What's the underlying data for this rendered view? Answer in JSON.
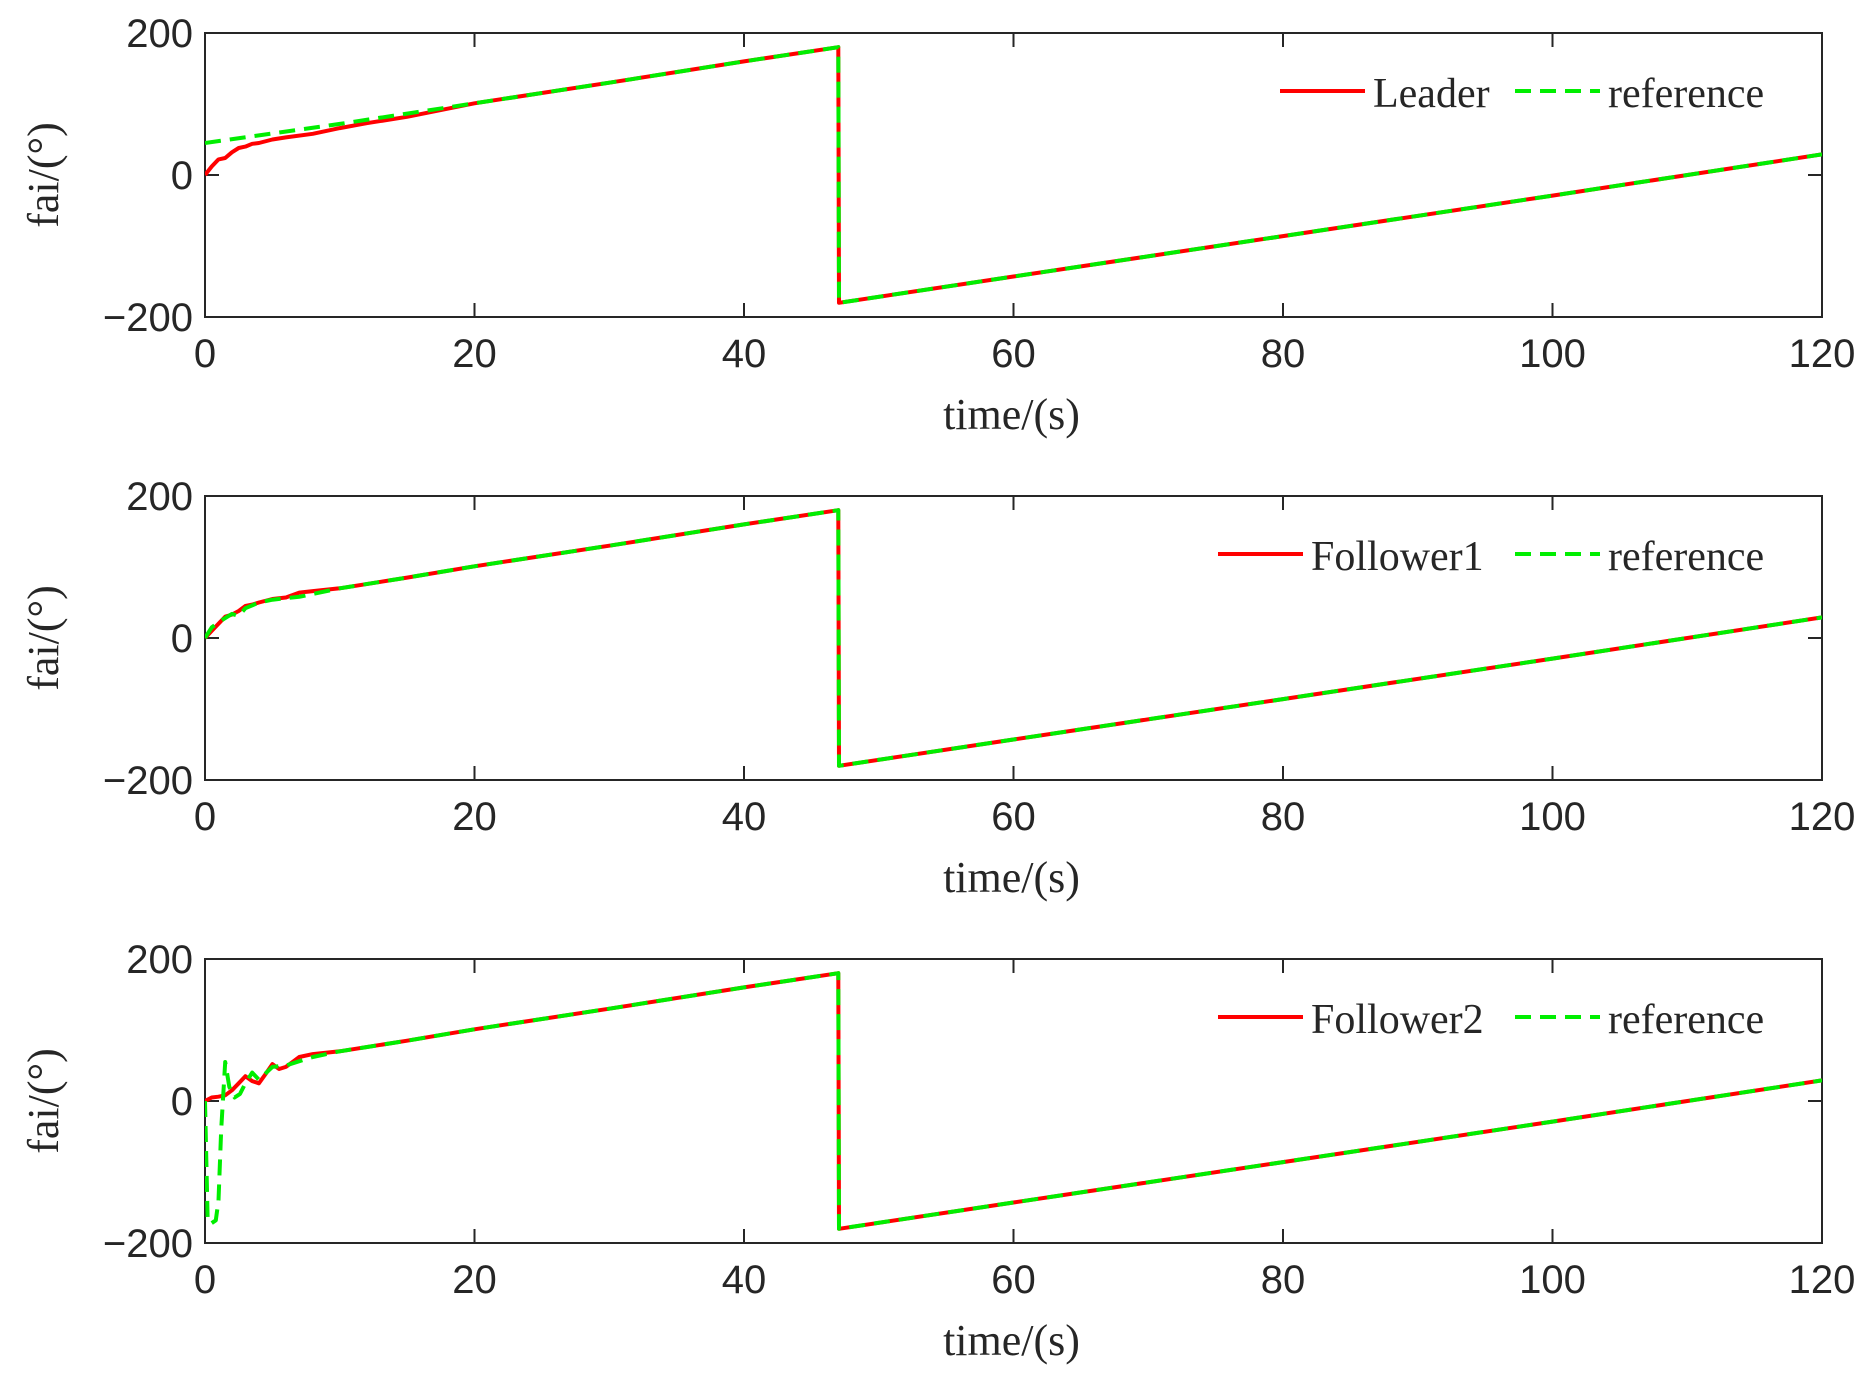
{
  "chart_data": [
    {
      "type": "line",
      "xlabel": "time/(s)",
      "ylabel": "fai/(°)",
      "xlim": [
        0,
        120
      ],
      "ylim": [
        -200,
        200
      ],
      "xticks": [
        "0",
        "20",
        "40",
        "60",
        "80",
        "100",
        "120"
      ],
      "yticks": [
        "200",
        "0",
        "−200"
      ],
      "legend_position": "top-right",
      "series": [
        {
          "name": "Leader",
          "color": "#ff0000",
          "style": "solid",
          "x": [
            0,
            0.5,
            1,
            1.5,
            2,
            2.5,
            3,
            3.5,
            4,
            5,
            6,
            8,
            10,
            12,
            15,
            20,
            30,
            40,
            47,
            47.05,
            60,
            80,
            100,
            120
          ],
          "y": [
            0,
            12,
            22,
            24,
            32,
            38,
            40,
            44,
            45,
            50,
            53,
            58,
            66,
            73,
            82,
            101,
            130,
            160,
            180,
            -180,
            -143,
            -86,
            -29,
            29
          ]
        },
        {
          "name": "reference",
          "color": "#00ee00",
          "style": "dashed",
          "x": [
            0,
            10,
            20,
            30,
            40,
            47,
            47.05,
            60,
            80,
            100,
            120
          ],
          "y": [
            45,
            72,
            101,
            130,
            160,
            180,
            -180,
            -143,
            -86,
            -29,
            29
          ]
        }
      ]
    },
    {
      "type": "line",
      "xlabel": "time/(s)",
      "ylabel": "fai/(°)",
      "xlim": [
        0,
        120
      ],
      "ylim": [
        -200,
        200
      ],
      "xticks": [
        "0",
        "20",
        "40",
        "60",
        "80",
        "100",
        "120"
      ],
      "yticks": [
        "200",
        "0",
        "−200"
      ],
      "legend_position": "top-right",
      "series": [
        {
          "name": "Follower1",
          "color": "#ff0000",
          "style": "solid",
          "x": [
            0,
            0.5,
            1,
            1.5,
            2,
            2.5,
            3,
            3.5,
            4,
            5,
            6,
            7,
            8,
            10,
            15,
            20,
            30,
            40,
            47,
            47.05,
            60,
            80,
            100,
            120
          ],
          "y": [
            0,
            10,
            20,
            30,
            33,
            38,
            45,
            47,
            50,
            55,
            57,
            64,
            66,
            70,
            85,
            101,
            130,
            160,
            180,
            -180,
            -143,
            -86,
            -29,
            29
          ]
        },
        {
          "name": "reference",
          "color": "#00ee00",
          "style": "dashed",
          "x": [
            0,
            0.5,
            1,
            1.5,
            2,
            2.5,
            3,
            4,
            5,
            6,
            7,
            8,
            10,
            15,
            20,
            30,
            40,
            47,
            47.05,
            60,
            80,
            100,
            120
          ],
          "y": [
            0,
            15,
            22,
            28,
            34,
            31,
            42,
            50,
            54,
            56,
            58,
            62,
            70,
            85,
            101,
            130,
            160,
            180,
            -180,
            -143,
            -86,
            -29,
            29
          ]
        }
      ]
    },
    {
      "type": "line",
      "xlabel": "time/(s)",
      "ylabel": "fai/(°)",
      "xlim": [
        0,
        120
      ],
      "ylim": [
        -200,
        200
      ],
      "xticks": [
        "0",
        "20",
        "40",
        "60",
        "80",
        "100",
        "120"
      ],
      "yticks": [
        "200",
        "0",
        "−200"
      ],
      "legend_position": "top-right",
      "series": [
        {
          "name": "Follower2",
          "color": "#ff0000",
          "style": "solid",
          "x": [
            0,
            0.5,
            1,
            1.5,
            2,
            2.5,
            3,
            3.5,
            4,
            4.5,
            5,
            5.5,
            6,
            6.5,
            7,
            8,
            10,
            15,
            20,
            30,
            40,
            47,
            47.05,
            60,
            80,
            100,
            120
          ],
          "y": [
            0,
            5,
            6,
            8,
            15,
            25,
            35,
            28,
            25,
            38,
            52,
            45,
            48,
            55,
            62,
            66,
            70,
            85,
            101,
            130,
            160,
            180,
            -180,
            -143,
            -86,
            -29,
            29
          ]
        },
        {
          "name": "reference",
          "color": "#00ee00",
          "style": "dashed",
          "x": [
            0,
            0.2,
            0.5,
            0.8,
            1.0,
            1.2,
            1.5,
            1.8,
            2.2,
            2.6,
            3.0,
            3.5,
            4,
            5,
            6,
            7,
            8,
            10,
            15,
            20,
            30,
            40,
            47,
            47.05,
            60,
            80,
            100,
            120
          ],
          "y": [
            0,
            -170,
            -172,
            -168,
            -140,
            -40,
            55,
            20,
            5,
            10,
            25,
            40,
            30,
            48,
            50,
            56,
            62,
            70,
            85,
            101,
            130,
            160,
            180,
            -180,
            -143,
            -86,
            -29,
            29
          ]
        }
      ]
    }
  ]
}
